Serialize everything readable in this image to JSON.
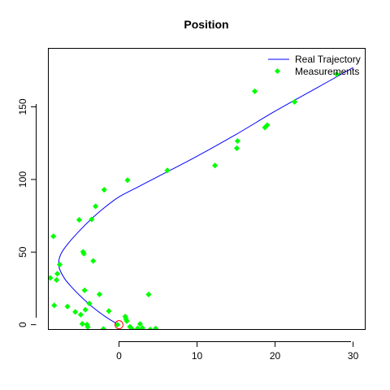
{
  "chart_data": {
    "type": "scatter",
    "title": "Position",
    "xlabel": "",
    "ylabel": "",
    "xlim": [
      -9,
      31.5
    ],
    "ylim": [
      -3,
      190
    ],
    "x_ticks": [
      0,
      10,
      20,
      30
    ],
    "y_ticks": [
      0,
      50,
      100,
      150
    ],
    "x_tick_labels": [
      "0",
      "10",
      "20",
      "30"
    ],
    "y_tick_labels": [
      "0",
      "50",
      "100",
      "150"
    ],
    "grid": false,
    "legend_position": "top-right",
    "series": [
      {
        "name": "Real Trajectory",
        "kind": "line",
        "color": "#0000ff",
        "x": [
          0,
          -1,
          -2,
          -3,
          -4,
          -5,
          -6,
          -7,
          -7.7,
          -7.5,
          -6.5,
          -5,
          -3.5,
          -2,
          0,
          2.5,
          5,
          10,
          15,
          20,
          25,
          30
        ],
        "y": [
          0,
          3,
          6.5,
          10.5,
          15,
          20,
          25.5,
          32,
          40,
          48,
          56,
          65,
          73,
          80,
          88,
          95,
          102,
          116,
          131,
          147,
          162,
          177
        ]
      },
      {
        "name": "Measurements",
        "kind": "points",
        "color": "#00ff00",
        "x": [
          -8.8,
          -8.4,
          -8.3,
          -8.0,
          -7.9,
          -7.6,
          -6.6,
          -5.6,
          -5.1,
          -4.9,
          -4.7,
          -4.6,
          -4.5,
          -4.4,
          -4.3,
          -4.1,
          -4.0,
          -3.8,
          -3.5,
          -3.3,
          -3.0,
          -2.5,
          -2.0,
          -1.9,
          -1.3,
          -0.2,
          0.2,
          0.8,
          0.9,
          1.0,
          1.1,
          1.4,
          1.7,
          2.4,
          2.7,
          3.0,
          3.8,
          4.0,
          4.7,
          6.2,
          12.3,
          15.1,
          15.2,
          18.7,
          19.0,
          22.5,
          17.4,
          27.9
        ],
        "y": [
          32.2,
          60.9,
          13.3,
          30.8,
          35.1,
          41.4,
          12.5,
          8.8,
          72.2,
          6.9,
          0.6,
          50.2,
          48.9,
          23.7,
          10.3,
          0.1,
          -1.5,
          14.6,
          72.5,
          43.9,
          81.5,
          20.9,
          -2.9,
          92.9,
          9.4,
          0,
          -7,
          5.6,
          3.9,
          2.5,
          99.5,
          -1.4,
          -3.1,
          -2.5,
          0.5,
          -2.3,
          20.8,
          -3.3,
          -2.6,
          106.2,
          109.6,
          121.5,
          126.5,
          135.8,
          137.4,
          153.4,
          160.7,
          172.5
        ]
      }
    ],
    "start_marker": {
      "x": 0,
      "y": 0,
      "color": "#ff0000"
    }
  }
}
